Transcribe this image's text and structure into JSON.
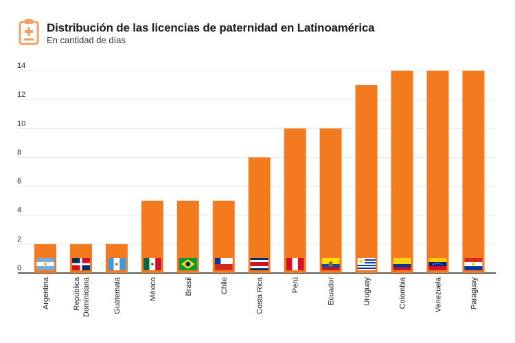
{
  "header": {
    "title": "Distribución de las licencias de paternidad en Latinoamérica",
    "subtitle": "En cantidad de días",
    "logo_icon": "clipboard-medical-icon"
  },
  "colors": {
    "bar": "#f47a20",
    "grid": "#e6e6e6",
    "axis": "#222222",
    "logo": "#f0a060"
  },
  "chart_data": {
    "type": "bar",
    "title": "Distribución de las licencias de paternidad en Latinoamérica",
    "subtitle": "En cantidad de días",
    "xlabel": "",
    "ylabel": "",
    "ylim": [
      0,
      14
    ],
    "yticks": [
      0,
      2,
      4,
      6,
      8,
      10,
      12,
      14
    ],
    "grid": true,
    "categories": [
      [
        "Argentina"
      ],
      [
        "República",
        "Dominicana"
      ],
      [
        "Guatemala"
      ],
      [
        "México"
      ],
      [
        "Brasil"
      ],
      [
        "Chile"
      ],
      [
        "Costa Rica"
      ],
      [
        "Perú"
      ],
      [
        "Ecuador"
      ],
      [
        "Uruguay"
      ],
      [
        "Colombia"
      ],
      [
        "Venezuela"
      ],
      [
        "Paraguay"
      ]
    ],
    "flags": [
      "argentina-flag-icon",
      "dominican-republic-flag-icon",
      "guatemala-flag-icon",
      "mexico-flag-icon",
      "brazil-flag-icon",
      "chile-flag-icon",
      "costa-rica-flag-icon",
      "peru-flag-icon",
      "ecuador-flag-icon",
      "uruguay-flag-icon",
      "colombia-flag-icon",
      "venezuela-flag-icon",
      "paraguay-flag-icon"
    ],
    "values": [
      2,
      2,
      2,
      5,
      5,
      5,
      8,
      10,
      10,
      13,
      14,
      14,
      14
    ]
  }
}
